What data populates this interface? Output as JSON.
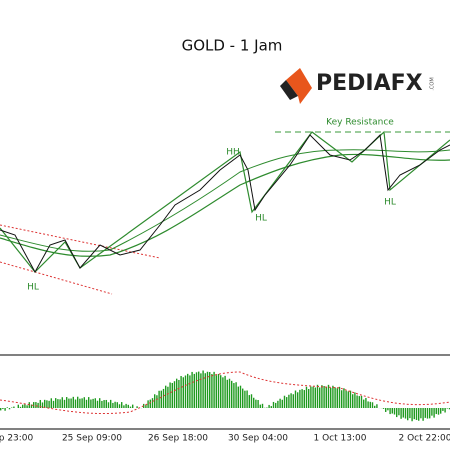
{
  "header": {
    "title": "GOLD - 1 Jam",
    "logo": "PEDIAFX",
    "logo_suffix": ".COM"
  },
  "annotations": {
    "key_resistance": "Key Resistance",
    "hh": "HH",
    "hl_1": "HL",
    "hl_2": "HL",
    "hl_3": "HL"
  },
  "x_labels": [
    "p 23:00",
    "25 Sep 09:00",
    "26 Sep 18:00",
    "30 Sep 04:00",
    "1 Oct 13:00",
    "2 Oct 22:00"
  ]
}
